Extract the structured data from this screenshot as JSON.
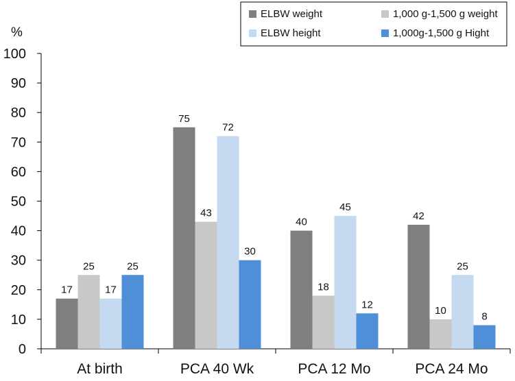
{
  "chart_data": {
    "type": "bar",
    "title": "",
    "xlabel": "",
    "ylabel": "%",
    "ylim": [
      0,
      100
    ],
    "yticks": [
      0,
      10,
      20,
      30,
      40,
      50,
      60,
      70,
      80,
      90,
      100
    ],
    "categories": [
      "At birth",
      "PCA 40 Wk",
      "PCA 12 Mo",
      "PCA 24 Mo"
    ],
    "series": [
      {
        "name": "ELBW weight",
        "color": "#7f7f7f",
        "values": [
          17,
          75,
          40,
          42
        ]
      },
      {
        "name": "1,000 g-1,500 g weight",
        "color": "#c8c8c8",
        "values": [
          25,
          43,
          18,
          10
        ]
      },
      {
        "name": "ELBW height",
        "color": "#c5d9f1",
        "values": [
          17,
          72,
          45,
          25
        ]
      },
      {
        "name": "1,000g-1,500 g Hight",
        "color": "#4f8fd8",
        "values": [
          25,
          30,
          12,
          8
        ]
      }
    ],
    "legend_position": "top-right",
    "grid": false
  }
}
